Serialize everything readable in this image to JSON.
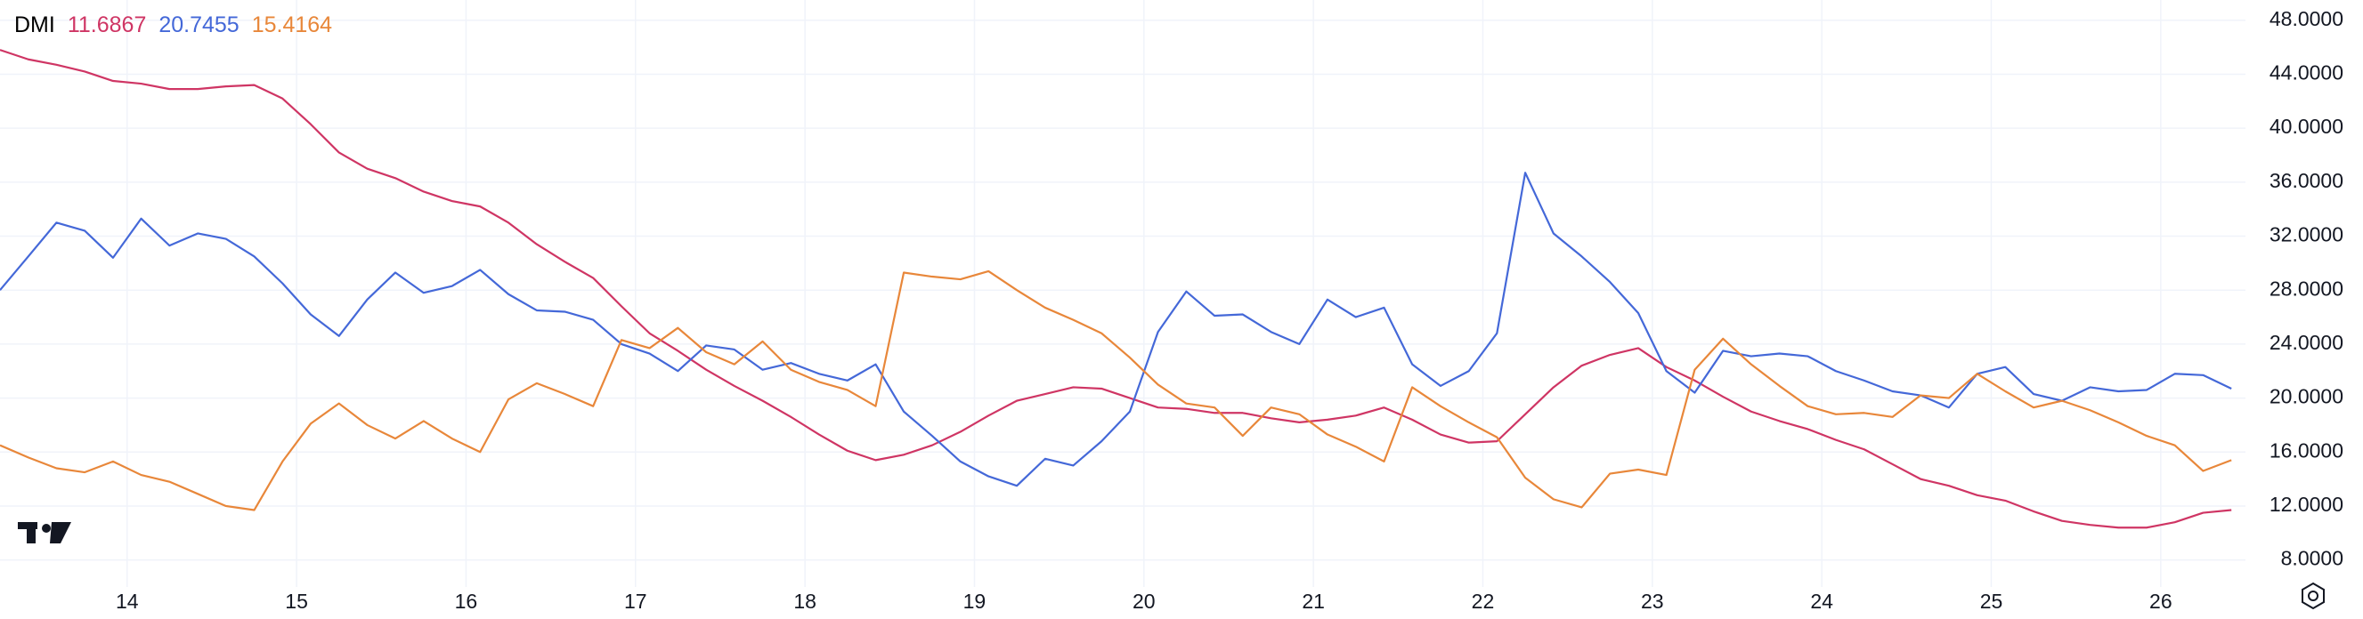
{
  "chart_data": {
    "type": "line",
    "legend": {
      "title": "DMI",
      "values": [
        11.6867,
        20.7455,
        15.4164
      ]
    },
    "x": [
      13.25,
      13.417,
      13.583,
      13.75,
      13.917,
      14.083,
      14.25,
      14.417,
      14.583,
      14.75,
      14.917,
      15.083,
      15.25,
      15.417,
      15.583,
      15.75,
      15.917,
      16.083,
      16.25,
      16.417,
      16.583,
      16.75,
      16.917,
      17.083,
      17.25,
      17.417,
      17.583,
      17.75,
      17.917,
      18.083,
      18.25,
      18.417,
      18.583,
      18.75,
      18.917,
      19.083,
      19.25,
      19.417,
      19.583,
      19.75,
      19.917,
      20.083,
      20.25,
      20.417,
      20.583,
      20.75,
      20.917,
      21.083,
      21.25,
      21.417,
      21.583,
      21.75,
      21.917,
      22.083,
      22.25,
      22.417,
      22.583,
      22.75,
      22.917,
      23.083,
      23.25,
      23.417,
      23.583,
      23.75,
      23.917,
      24.083,
      24.25,
      24.417,
      24.583,
      24.75,
      24.917,
      25.083,
      25.25,
      25.417,
      25.583,
      25.75,
      25.917,
      26.083,
      26.25,
      26.417
    ],
    "series": [
      {
        "color": "#cf3564",
        "values": [
          45.8,
          45.1,
          44.7,
          44.2,
          43.5,
          43.3,
          42.9,
          42.9,
          43.1,
          43.2,
          42.2,
          40.3,
          38.2,
          37.0,
          36.3,
          35.3,
          34.6,
          34.2,
          33.0,
          31.4,
          30.1,
          28.9,
          26.8,
          24.8,
          23.5,
          22.1,
          20.9,
          19.8,
          18.6,
          17.3,
          16.1,
          15.4,
          15.8,
          16.5,
          17.5,
          18.7,
          19.8,
          20.3,
          20.8,
          20.7,
          20.0,
          19.3,
          19.2,
          18.9,
          18.9,
          18.5,
          18.2,
          18.4,
          18.7,
          19.3,
          18.4,
          17.3,
          16.7,
          16.8,
          18.8,
          20.8,
          22.4,
          23.2,
          23.7,
          22.3,
          21.3,
          20.1,
          19.0,
          18.3,
          17.7,
          16.9,
          16.2,
          15.1,
          14.0,
          13.5,
          12.8,
          12.4,
          11.6,
          10.9,
          10.6,
          10.4,
          10.4,
          10.8,
          11.5,
          11.7
        ]
      },
      {
        "color": "#4468d8",
        "values": [
          28.0,
          30.5,
          33.0,
          32.4,
          30.4,
          33.3,
          31.3,
          32.2,
          31.8,
          30.5,
          28.5,
          26.2,
          24.6,
          27.3,
          29.3,
          27.8,
          28.3,
          29.5,
          27.7,
          26.5,
          26.4,
          25.8,
          24.0,
          23.3,
          22.0,
          23.9,
          23.6,
          22.1,
          22.6,
          21.8,
          21.3,
          22.5,
          19.0,
          17.2,
          15.3,
          14.2,
          13.5,
          15.5,
          15.0,
          16.8,
          19.0,
          24.9,
          27.9,
          26.1,
          26.2,
          24.9,
          24.0,
          27.3,
          26.0,
          26.7,
          22.5,
          20.9,
          22.0,
          24.8,
          36.7,
          32.2,
          30.5,
          28.6,
          26.3,
          22.0,
          20.4,
          23.5,
          23.1,
          23.3,
          23.1,
          22.0,
          21.3,
          20.5,
          20.2,
          19.3,
          21.8,
          22.3,
          20.3,
          19.8,
          20.8,
          20.5,
          20.6,
          21.8,
          21.7,
          20.7
        ]
      },
      {
        "color": "#e8873a",
        "values": [
          16.5,
          15.6,
          14.8,
          14.5,
          15.3,
          14.3,
          13.8,
          12.9,
          12.0,
          11.7,
          15.3,
          18.1,
          19.6,
          18.0,
          17.0,
          18.3,
          17.0,
          16.0,
          19.9,
          21.1,
          20.3,
          19.4,
          24.3,
          23.7,
          25.2,
          23.4,
          22.5,
          24.2,
          22.1,
          21.2,
          20.6,
          19.4,
          29.3,
          29.0,
          28.8,
          29.4,
          28.0,
          26.7,
          25.8,
          24.8,
          23.0,
          21.0,
          19.6,
          19.3,
          17.2,
          19.3,
          18.8,
          17.3,
          16.4,
          15.3,
          20.8,
          19.4,
          18.2,
          17.1,
          14.1,
          12.5,
          11.9,
          14.4,
          14.7,
          14.3,
          22.1,
          24.4,
          22.5,
          20.9,
          19.4,
          18.8,
          18.9,
          18.6,
          20.2,
          20.0,
          21.8,
          20.5,
          19.3,
          19.8,
          19.1,
          18.2,
          17.2,
          16.5,
          14.6,
          15.4
        ]
      }
    ],
    "xlim": [
      13.25,
      26.5
    ],
    "xticks": [
      14,
      15,
      16,
      17,
      18,
      19,
      20,
      21,
      22,
      23,
      24,
      25,
      26
    ],
    "ylim": [
      6,
      49.5
    ],
    "yticks": [
      {
        "value": 8,
        "label": "8.0000"
      },
      {
        "value": 12,
        "label": "12.0000"
      },
      {
        "value": 16,
        "label": "16.0000"
      },
      {
        "value": 20,
        "label": "20.0000"
      },
      {
        "value": 24,
        "label": "24.0000"
      },
      {
        "value": 28,
        "label": "28.0000"
      },
      {
        "value": 32,
        "label": "32.0000"
      },
      {
        "value": 36,
        "label": "36.0000"
      },
      {
        "value": 40,
        "label": "40.0000"
      },
      {
        "value": 44,
        "label": "44.0000"
      },
      {
        "value": 48,
        "label": "48.0000"
      }
    ],
    "grid": true
  }
}
